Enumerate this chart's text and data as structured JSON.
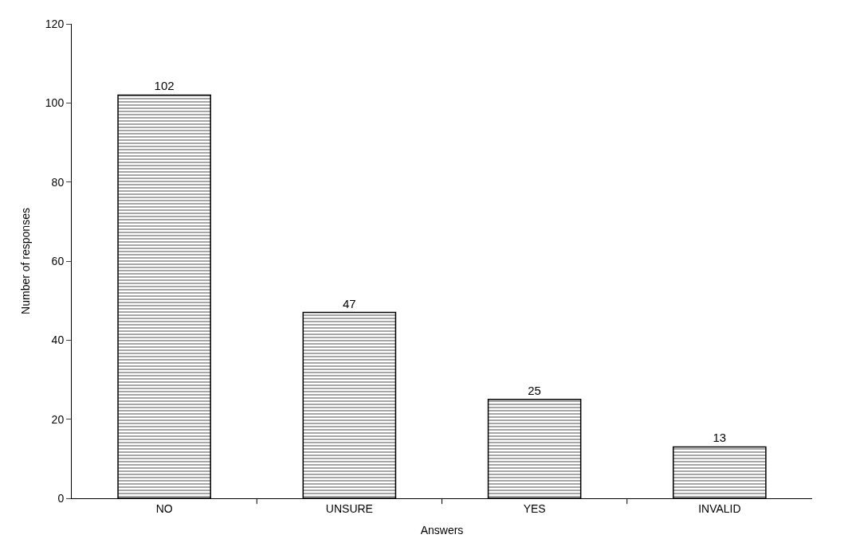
{
  "chart_data": {
    "type": "bar",
    "xlabel": "Answers",
    "ylabel": "Number of responses",
    "categories": [
      "NO",
      "UNSURE",
      "YES",
      "INVALID"
    ],
    "values": [
      102,
      47,
      25,
      13
    ],
    "color": "#000000",
    "ylim": [
      0,
      120
    ],
    "yticks": [
      0,
      20,
      40,
      60,
      80,
      100,
      120
    ],
    "data_labels": true
  }
}
